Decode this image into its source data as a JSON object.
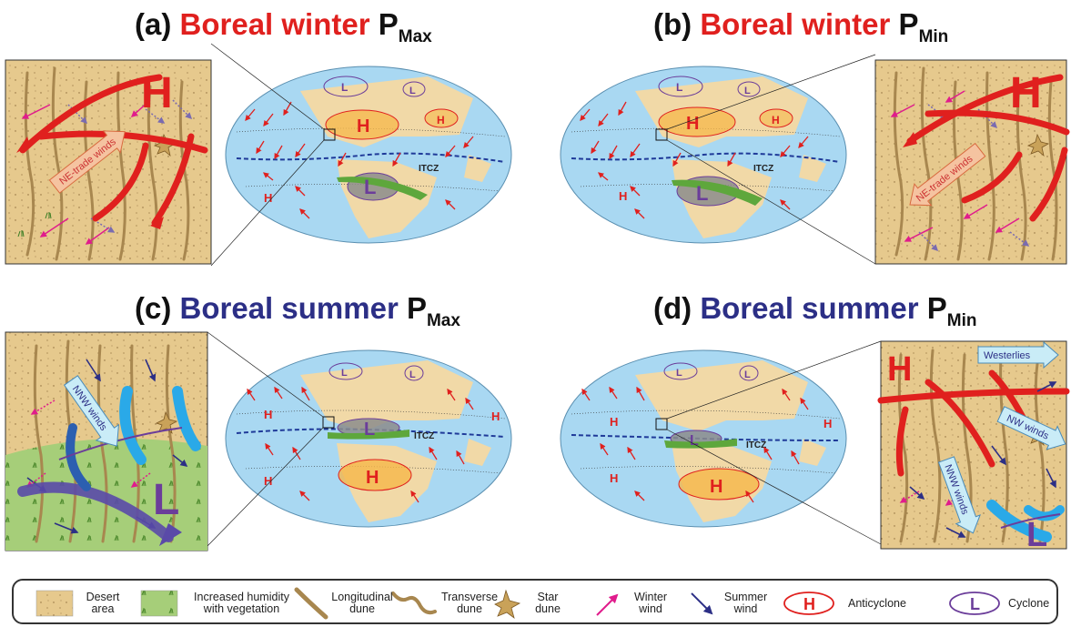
{
  "panels": {
    "a": {
      "label": "(a)",
      "season": "Boreal winter",
      "p": "P",
      "sub": "Max"
    },
    "b": {
      "label": "(b)",
      "season": "Boreal winter",
      "p": "P",
      "sub": "Min"
    },
    "c": {
      "label": "(c)",
      "season": "Boreal summer",
      "p": "P",
      "sub": "Max"
    },
    "d": {
      "label": "(d)",
      "season": "Boreal summer",
      "p": "P",
      "sub": "Min"
    }
  },
  "map_labels": {
    "high": "H",
    "low": "L",
    "itcz": "ITCZ"
  },
  "inset_labels": {
    "ne_trade_winds": "NE-trade winds",
    "nnw_winds": "NNW winds",
    "westerlies": "Westerlies",
    "nw_winds": "NW winds"
  },
  "legend": {
    "desert_area": [
      "Desert",
      "area"
    ],
    "humidity": [
      "Increased humidity",
      "with vegetation"
    ],
    "longitudinal": [
      "Longitudinal",
      "dune"
    ],
    "transverse": [
      "Transverse",
      "dune"
    ],
    "star": [
      "Star",
      "dune"
    ],
    "winter_wind": [
      "Winter",
      "wind"
    ],
    "summer_wind": [
      "Summer",
      "wind"
    ],
    "anticyclone": "Anticyclone",
    "cyclone": "Cyclone",
    "anticyclone_symbol": "H",
    "cyclone_symbol": "L"
  },
  "colors": {
    "winter_red": "#e0201e",
    "summer_navy": "#2c2f86",
    "ocean": "#a9d8f2",
    "land": "#f1d9a7",
    "sand": "#e6c98d",
    "vegetation": "#a6ce79",
    "magenta_wind": "#e01c8c",
    "cyclone_purple": "#6b3d9a"
  }
}
